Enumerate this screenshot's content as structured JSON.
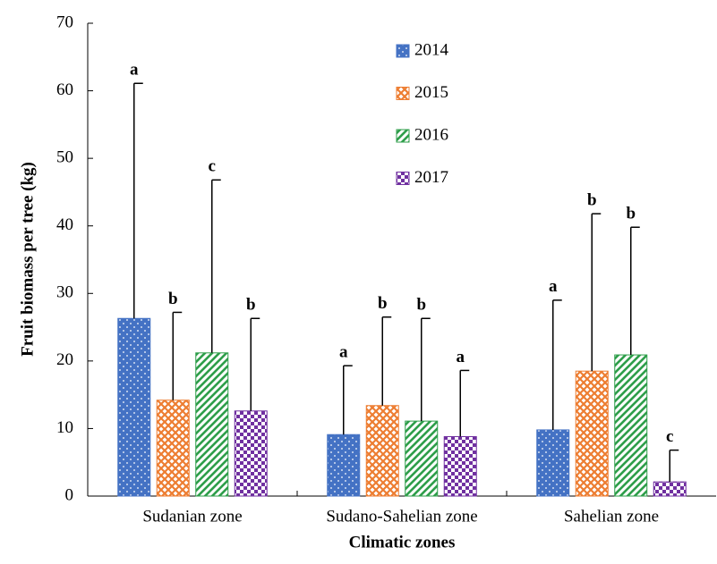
{
  "chart_data": {
    "type": "bar",
    "y_label": "Fruit biomass per tree (kg)",
    "x_label": "Climatic zones",
    "categories": [
      "Sudanian zone",
      "Sudano-Sahelian zone",
      "Sahelian zone"
    ],
    "ylim": [
      0,
      70
    ],
    "yticks": [
      0,
      10,
      20,
      30,
      40,
      50,
      60,
      70
    ],
    "legend": "top-center",
    "series": [
      {
        "name": "2014",
        "color": "#4472c4",
        "pattern": "dots",
        "values": [
          26.3,
          9.1,
          9.8
        ],
        "errors": [
          34.8,
          10.2,
          19.2
        ],
        "letters": [
          "a",
          "a",
          "a"
        ]
      },
      {
        "name": "2015",
        "color": "#ed7d31",
        "pattern": "crosshatch",
        "values": [
          14.2,
          13.4,
          18.5
        ],
        "errors": [
          13.0,
          13.1,
          23.3
        ],
        "letters": [
          "b",
          "b",
          "b"
        ]
      },
      {
        "name": "2016",
        "color": "#2e9e4a",
        "pattern": "diagonal",
        "values": [
          21.2,
          11.1,
          20.9
        ],
        "errors": [
          25.6,
          15.2,
          18.9
        ],
        "letters": [
          "c",
          "b",
          "b"
        ]
      },
      {
        "name": "2017",
        "color": "#7030a0",
        "pattern": "checker",
        "values": [
          12.6,
          8.8,
          2.1
        ],
        "errors": [
          13.7,
          9.8,
          4.7
        ],
        "letters": [
          "b",
          "a",
          "c"
        ]
      }
    ]
  }
}
